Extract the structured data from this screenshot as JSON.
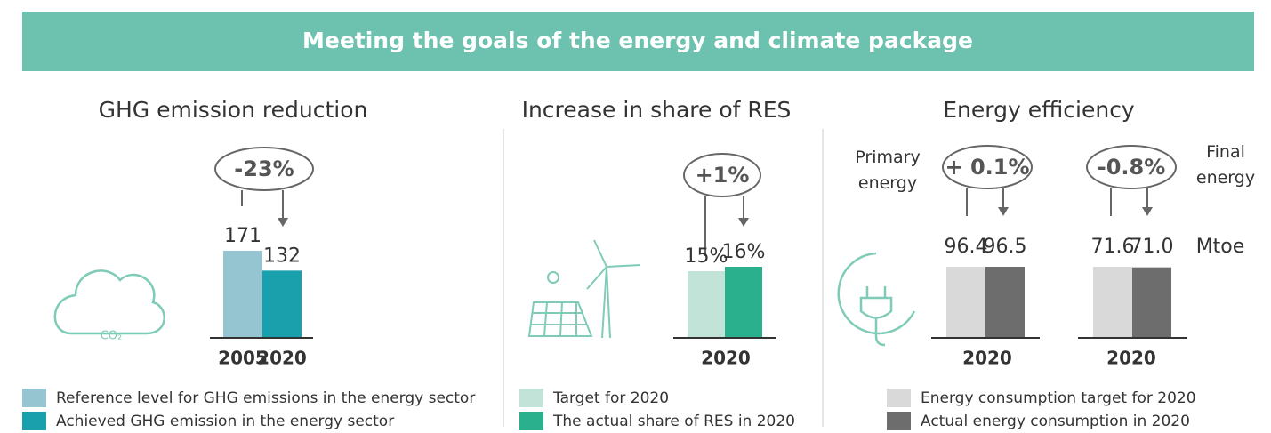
{
  "header": {
    "title": "Meeting the goals of the energy and climate package"
  },
  "panels": [
    {
      "title": "GHG emission reduction",
      "change": "-23%",
      "icon_label": "CO₂",
      "bars": [
        {
          "name": "Reference level for GHG emissions in the energy sector",
          "color": "#94c5d0",
          "value": 171,
          "category": "2005"
        },
        {
          "name": "Achieved GHG emission in the energy sector",
          "color": "#1aa0ad",
          "value": 132,
          "category": "2020"
        }
      ]
    },
    {
      "title": "Increase in share of RES",
      "change": "+1%",
      "category": "2020",
      "bars": [
        {
          "name": "Target for 2020",
          "color": "#c2e3d7",
          "value": 15,
          "value_label": "15%"
        },
        {
          "name": "The actual share of RES in 2020",
          "color": "#2bb08e",
          "value": 16,
          "value_label": "16%"
        }
      ]
    },
    {
      "title": "Energy efficiency",
      "unit": "Mtoe",
      "legend": [
        {
          "name": "Energy consumption target for 2020",
          "color": "#d9d9d9"
        },
        {
          "name": "Actual energy consumption in 2020",
          "color": "#6d6d6d"
        }
      ],
      "groups": [
        {
          "label": "Primary energy",
          "change": "+ 0.1%",
          "category": "2020",
          "values": [
            96.4,
            96.5
          ]
        },
        {
          "label": "Final energy",
          "change": "-0.8%",
          "category": "2020",
          "values": [
            71.6,
            71.0
          ],
          "value_labels": [
            "71.6",
            "71.0"
          ]
        }
      ]
    }
  ]
}
